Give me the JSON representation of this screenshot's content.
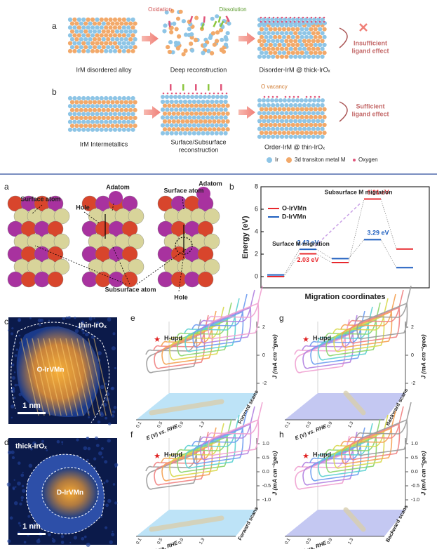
{
  "scheme": {
    "row_a": {
      "letter": "a",
      "labels": [
        "IrM disordered alloy",
        "Deep reconstruction",
        "Disorder-IrM @ thick-IrOₓ"
      ],
      "oxidation": "Oxidation",
      "dissolution": "Dissolution",
      "effect": [
        "Insufficient",
        "ligand effect"
      ]
    },
    "row_b": {
      "letter": "b",
      "labels": [
        "IrM Intermetallics",
        "Surface/Subsurface",
        "reconstruction",
        "Order-IrM @ thin-IrOₓ"
      ],
      "o_vacancy": "O vacancy",
      "effect": [
        "Sufficient",
        "ligand effect"
      ]
    },
    "legend": [
      "Ir",
      "3d transiton metal M",
      "Oxygen"
    ]
  },
  "atoms": {
    "letter": "a",
    "labels": [
      "Surface atom",
      "Hole",
      "Adatom",
      "Surface atom",
      "Adatom",
      "Subsurface atom",
      "Hole"
    ]
  },
  "energy_chart": {
    "type": "energy_levels",
    "letter": "b",
    "ylabel": "Energy (eV)",
    "xlabel": "Migration coordinates",
    "ylim": [
      -1,
      8
    ],
    "yticks": [
      0,
      2,
      4,
      6,
      8
    ],
    "annotations": [
      "Surface M migration",
      "Subsurface M migration"
    ],
    "series": [
      {
        "name": "O-IrVMn",
        "color": "#e8282d",
        "values": [
          0,
          2.03,
          1.25,
          6.91,
          2.45
        ],
        "value_labels": [
          null,
          "2.03 eV",
          null,
          "6.91 eV",
          null
        ]
      },
      {
        "name": "D-IrVMn",
        "color": "#1f5fbf",
        "values": [
          0.15,
          2.43,
          1.6,
          3.29,
          0.8
        ],
        "value_labels": [
          null,
          "2.43 eV",
          null,
          "3.29 eV",
          null
        ]
      }
    ]
  },
  "images": [
    {
      "letter": "c",
      "shell": "thin-IrOₓ",
      "core": "O-IrVMn",
      "scale": "1 nm"
    },
    {
      "letter": "d",
      "shell": "thick-IrOₓ",
      "core": "D-IrVMn",
      "scale": "1 nm"
    }
  ],
  "cv_panels": [
    {
      "letter": "e",
      "marker": "H-upd",
      "scan": "Forward scans",
      "xlabel": "E (V) vs. RHE",
      "ylabel": "J (mA cm⁻²geo)",
      "yticks": [
        "2",
        "0",
        "-2"
      ],
      "xticks": [
        "0.1",
        "0.5",
        "0.9",
        "1.3"
      ]
    },
    {
      "letter": "g",
      "marker": "H-upd",
      "scan": "Backward scans",
      "xlabel": "E (V) vs. RHE",
      "ylabel": "J (mA cm⁻²geo)",
      "yticks": [
        "2",
        "0",
        "-2"
      ],
      "xticks": [
        "0.1",
        "0.5",
        "0.9",
        "1.3"
      ]
    },
    {
      "letter": "f",
      "marker": "H-upd",
      "scan": "Forward scans",
      "xlabel": "E (V) vs. RHE",
      "ylabel": "J (mA cm⁻²geo)",
      "yticks": [
        "1.0",
        "0.5",
        "0.0",
        "-0.5",
        "-1.0"
      ],
      "xticks": [
        "0.1",
        "0.5",
        "0.9",
        "1.3"
      ]
    },
    {
      "letter": "h",
      "marker": "H-upd",
      "scan": "Backward scans",
      "xlabel": "E (V) vs. RHE",
      "ylabel": "J (mA cm⁻²geo)",
      "yticks": [
        "1.0",
        "0.5",
        "0.0",
        "-0.5",
        "-1.0"
      ],
      "xticks": [
        "0.1",
        "0.5",
        "0.9",
        "1.3"
      ]
    }
  ]
}
